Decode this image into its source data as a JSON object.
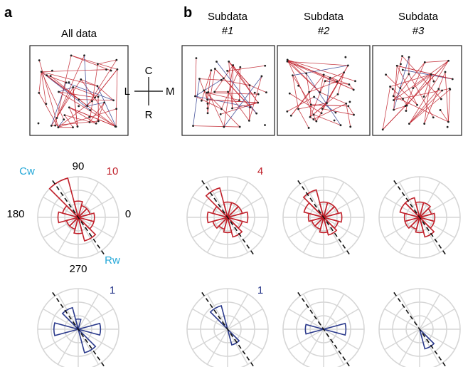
{
  "panels": {
    "a": {
      "letter": "a",
      "title": "All data"
    },
    "b": {
      "letter": "b",
      "subtitles": [
        {
          "line1": "Subdata",
          "line2": "#1"
        },
        {
          "line1": "Subdata",
          "line2": "#2"
        },
        {
          "line1": "Subdata",
          "line2": "#3"
        }
      ]
    }
  },
  "compass": {
    "top": "C",
    "bottom": "R",
    "left": "L",
    "right": "M"
  },
  "polar_labels": {
    "angle_90": "90",
    "angle_180": "180",
    "angle_0": "0",
    "angle_270": "270",
    "cw": "Cw",
    "rw": "Rw",
    "scale_red_all": "10",
    "scale_red_sub": "4",
    "scale_blue_all": "1",
    "scale_blue_sub": "1"
  },
  "colors": {
    "red": "#c0202a",
    "blue": "#2b3a8c",
    "cyan_label": "#25a8d8",
    "grid": "#d6d6d6",
    "frame": "#222222"
  },
  "chart_data": [
    {
      "type": "polar-rose",
      "panel": "a",
      "color": "red",
      "scale_max": 10,
      "angles_deg": [
        0,
        30,
        60,
        90,
        120,
        150,
        180,
        210,
        240,
        270,
        300,
        330
      ],
      "values": [
        4,
        3,
        3,
        4,
        10,
        4,
        5,
        3,
        3,
        4,
        6,
        4
      ],
      "axis_deg": 125
    },
    {
      "type": "polar-rose",
      "panel": "b1",
      "color": "red",
      "scale_max": 4,
      "angles_deg": [
        0,
        30,
        60,
        90,
        120,
        150,
        180,
        210,
        240,
        270,
        300,
        330
      ],
      "values": [
        2,
        1.5,
        1.5,
        1.5,
        3,
        1.5,
        2,
        1.5,
        1.2,
        1.5,
        2,
        1.5
      ],
      "axis_deg": 125
    },
    {
      "type": "polar-rose",
      "panel": "b2",
      "color": "red",
      "scale_max": 4,
      "angles_deg": [
        0,
        30,
        60,
        90,
        120,
        150,
        180,
        210,
        240,
        270,
        300,
        330
      ],
      "values": [
        1.8,
        1.5,
        1.5,
        1.5,
        2.8,
        2,
        1.5,
        1.2,
        1.2,
        1.5,
        1.8,
        1.5
      ],
      "axis_deg": 125
    },
    {
      "type": "polar-rose",
      "panel": "b3",
      "color": "red",
      "scale_max": 4,
      "angles_deg": [
        0,
        30,
        60,
        90,
        120,
        150,
        180,
        210,
        240,
        270,
        300,
        330
      ],
      "values": [
        1.5,
        1.2,
        1.5,
        1.5,
        2,
        2,
        1.5,
        1.5,
        1.2,
        1.5,
        2,
        1.5
      ],
      "axis_deg": 125
    },
    {
      "type": "polar-rose",
      "panel": "a",
      "color": "blue",
      "scale_max": 1,
      "angles_deg": [
        0,
        90,
        120,
        180,
        300
      ],
      "values": [
        0.55,
        0.25,
        0.55,
        0.6,
        0.6
      ],
      "axis_deg": 125
    },
    {
      "type": "polar-rose",
      "panel": "b1",
      "color": "blue",
      "scale_max": 1,
      "angles_deg": [
        120,
        300
      ],
      "values": [
        0.6,
        0.4
      ],
      "axis_deg": 125
    },
    {
      "type": "polar-rose",
      "panel": "b2",
      "color": "blue",
      "scale_max": 1,
      "angles_deg": [
        0,
        180
      ],
      "values": [
        0.55,
        0.45
      ],
      "axis_deg": 125
    },
    {
      "type": "polar-rose",
      "panel": "b3",
      "color": "blue",
      "scale_max": 1,
      "angles_deg": [
        300
      ],
      "values": [
        0.5
      ],
      "axis_deg": 125
    }
  ]
}
